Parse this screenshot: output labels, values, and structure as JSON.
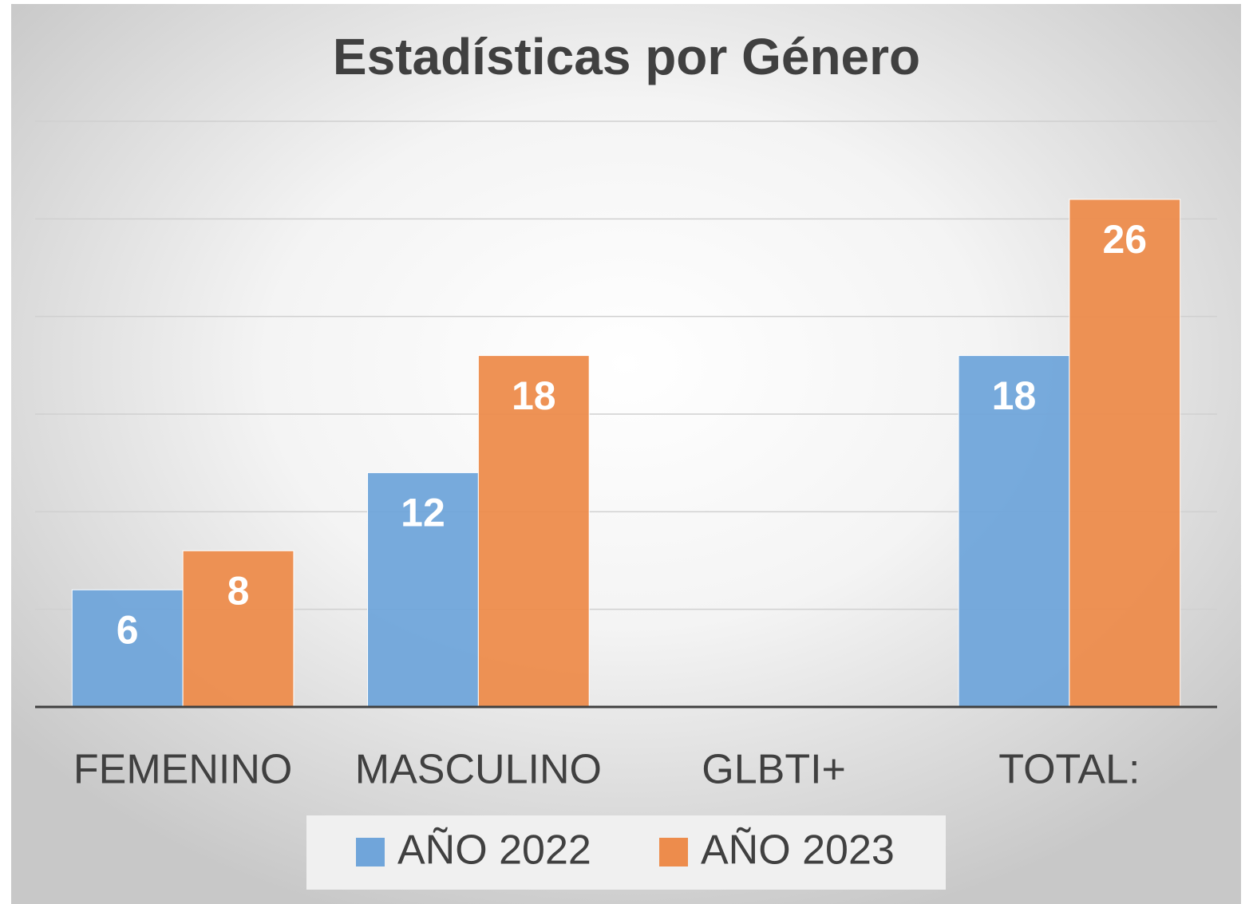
{
  "chart_data": {
    "type": "bar",
    "title": "Estadísticas por Género",
    "categories": [
      "FEMENINO",
      "MASCULINO",
      "GLBTI+",
      "TOTAL:"
    ],
    "series": [
      {
        "name": "AÑO 2022",
        "color": "#70a5da",
        "values": [
          6,
          12,
          null,
          18
        ]
      },
      {
        "name": "AÑO 2023",
        "color": "#ed8c4c",
        "values": [
          8,
          18,
          null,
          26
        ]
      }
    ],
    "ylim": [
      0,
      30
    ],
    "yticks": [
      0,
      5,
      10,
      15,
      20,
      25,
      30
    ],
    "grid": true,
    "legend": "bottom"
  }
}
